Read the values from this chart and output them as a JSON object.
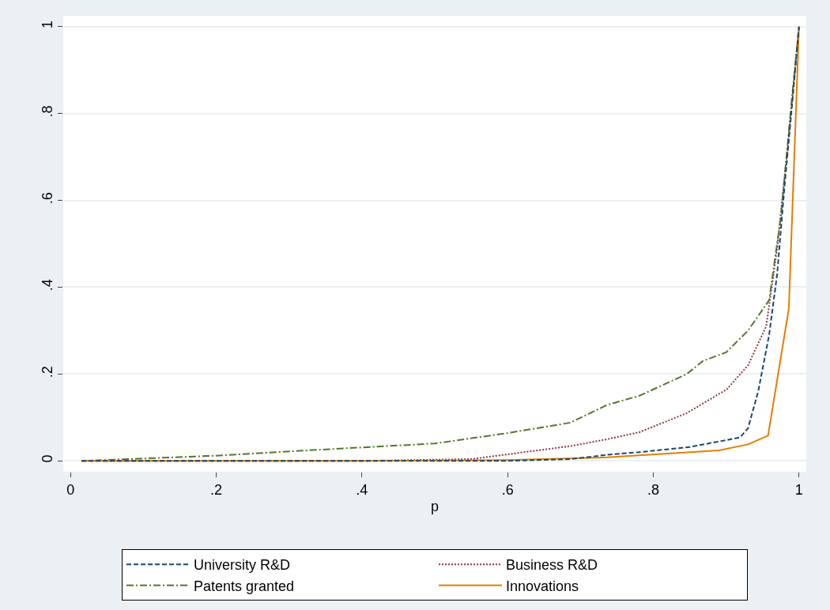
{
  "chart_data": {
    "type": "line",
    "xlabel": "p",
    "xlim": [
      -0.01,
      1.01
    ],
    "ylim": [
      -0.025,
      1.025
    ],
    "xticks": [
      0,
      {
        "value": 0.2,
        "label": ".2"
      },
      {
        "value": 0.4,
        "label": ".4"
      },
      {
        "value": 0.6,
        "label": ".6"
      },
      {
        "value": 0.8,
        "label": ".8"
      },
      1
    ],
    "yticks": [
      0,
      {
        "value": 0.2,
        "label": ".2"
      },
      {
        "value": 0.4,
        "label": ".4"
      },
      {
        "value": 0.6,
        "label": ".6"
      },
      {
        "value": 0.8,
        "label": ".8"
      },
      1
    ],
    "grid": "y",
    "legend": "bottom",
    "series": [
      {
        "name": "University R&D",
        "color": "#1a476f",
        "line_style": "dashed",
        "x": [
          0.015,
          0.2,
          0.4,
          0.6,
          0.686,
          0.737,
          0.781,
          0.85,
          0.901,
          0.919,
          0.93,
          0.944,
          0.959,
          0.97,
          0.98,
          0.991,
          1.0
        ],
        "values": [
          0,
          0,
          0,
          0,
          0.004,
          0.014,
          0.02,
          0.032,
          0.048,
          0.054,
          0.075,
          0.16,
          0.29,
          0.43,
          0.63,
          0.83,
          1.0
        ]
      },
      {
        "name": "Business R&D",
        "color": "#90353b",
        "line_style": "dotted",
        "x": [
          0.015,
          0.2,
          0.4,
          0.55,
          0.686,
          0.737,
          0.781,
          0.846,
          0.901,
          0.93,
          0.955,
          0.97,
          0.985,
          1.0
        ],
        "values": [
          0,
          0,
          0,
          0.004,
          0.034,
          0.05,
          0.066,
          0.11,
          0.165,
          0.22,
          0.31,
          0.49,
          0.73,
          1.0
        ]
      },
      {
        "name": "Patents granted",
        "color": "#55752f",
        "line_style": "dashdot",
        "x": [
          0.015,
          0.048,
          0.2,
          0.345,
          0.5,
          0.6,
          0.686,
          0.737,
          0.781,
          0.846,
          0.868,
          0.9,
          0.93,
          0.959,
          0.975,
          0.99,
          1.0
        ],
        "values": [
          0,
          0.002,
          0.012,
          0.026,
          0.04,
          0.064,
          0.088,
          0.129,
          0.15,
          0.2,
          0.23,
          0.25,
          0.3,
          0.37,
          0.56,
          0.83,
          1.0
        ]
      },
      {
        "name": "Innovations",
        "color": "#e37e00",
        "line_style": "solid",
        "x": [
          0.015,
          0.2,
          0.4,
          0.6,
          0.737,
          0.89,
          0.93,
          0.9575,
          0.986,
          1.0
        ],
        "values": [
          0,
          0,
          0,
          0.002,
          0.008,
          0.024,
          0.038,
          0.058,
          0.35,
          1.0
        ]
      }
    ]
  }
}
